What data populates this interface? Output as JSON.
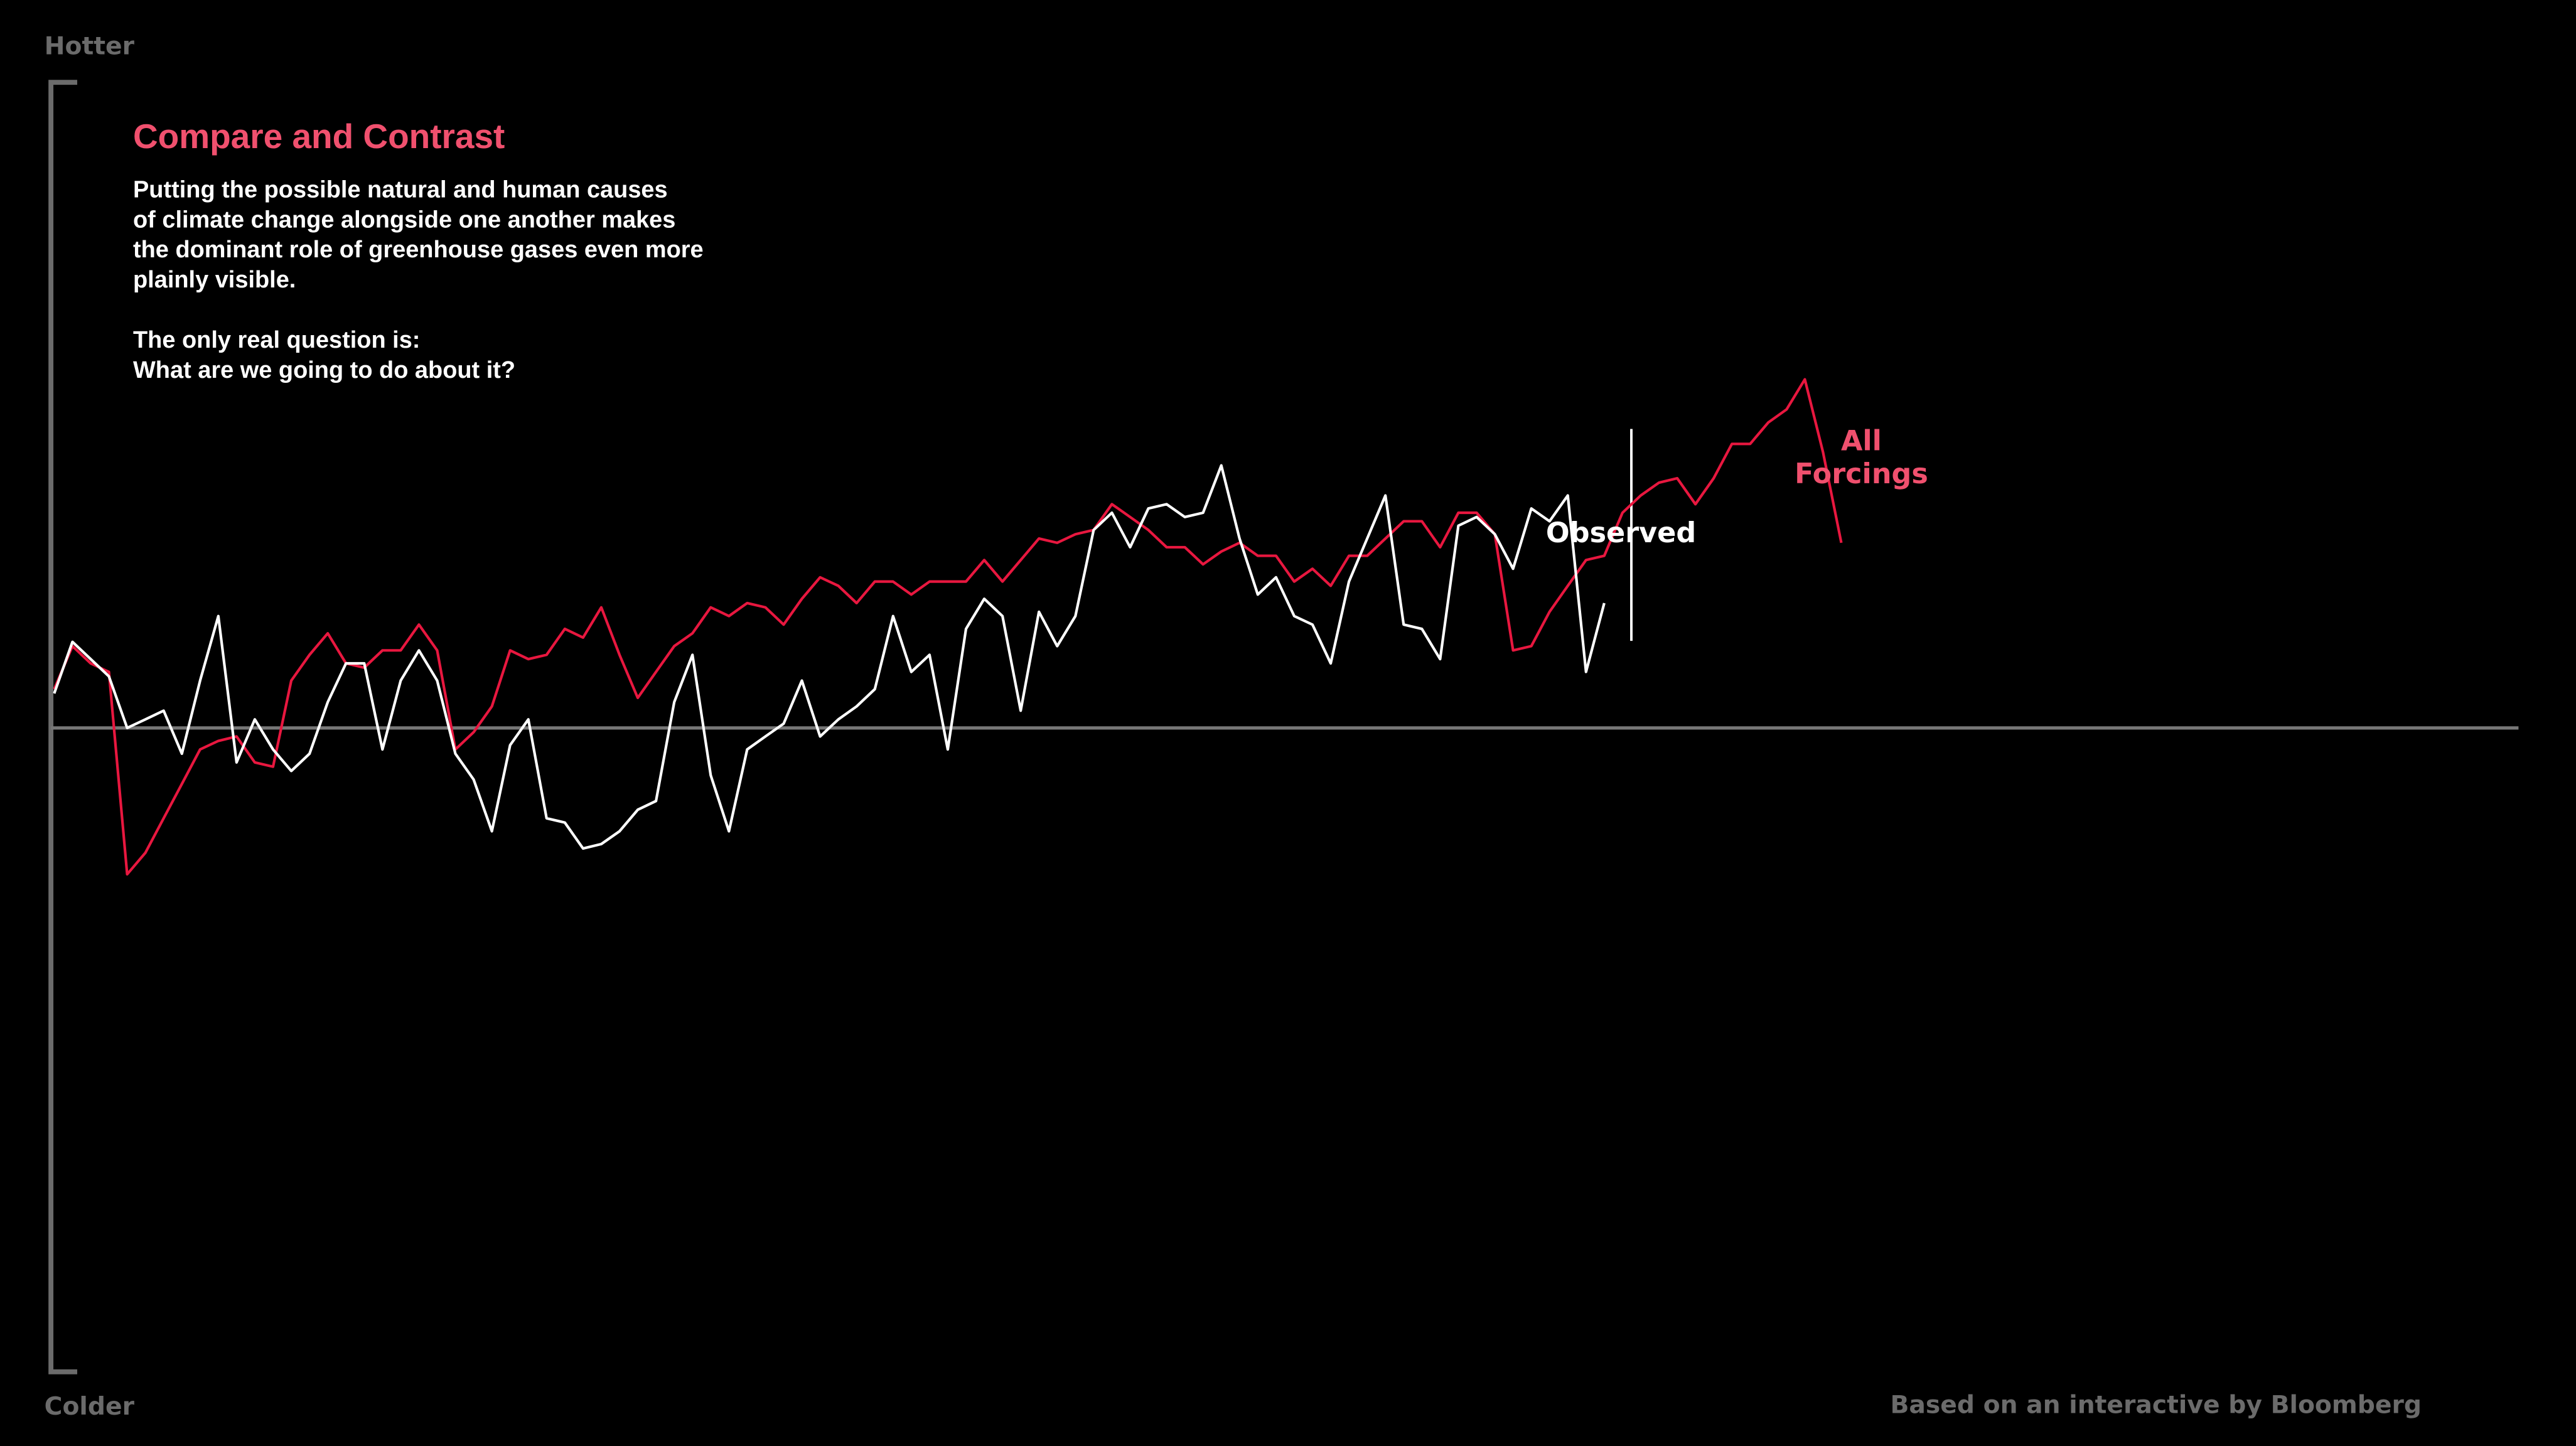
{
  "chart_data": {
    "type": "line",
    "title": "Compare and Contrast",
    "description": [
      [
        "Putting the possible natural and human causes",
        "of climate change alongside one another makes",
        "the dominant role of greenhouse gases even more",
        "plainly visible."
      ],
      [
        "The only real question is:",
        "What are we going to do about it?"
      ]
    ],
    "y_top_label": "Hotter",
    "y_bottom_label": "Colder",
    "credit": "Based on an interactive by Bloomberg",
    "ylim": [
      -1.5,
      1.5
    ],
    "series": [
      {
        "name": "Observed",
        "color": "#ffffff",
        "values": [
          0.08,
          0.2,
          0.16,
          0.12,
          0.0,
          0.02,
          0.04,
          -0.06,
          0.11,
          0.26,
          -0.08,
          0.02,
          -0.05,
          -0.1,
          -0.06,
          0.06,
          0.15,
          0.15,
          -0.05,
          0.11,
          0.18,
          0.11,
          -0.06,
          -0.12,
          -0.24,
          -0.04,
          0.02,
          -0.21,
          -0.22,
          -0.28,
          -0.27,
          -0.24,
          -0.19,
          -0.17,
          0.06,
          0.17,
          -0.11,
          -0.24,
          -0.05,
          -0.02,
          0.01,
          0.11,
          -0.02,
          0.02,
          0.05,
          0.09,
          0.26,
          0.13,
          0.17,
          -0.05,
          0.23,
          0.3,
          0.26,
          0.04,
          0.27,
          0.19,
          0.26,
          0.46,
          0.5,
          0.42,
          0.51,
          0.52,
          0.49,
          0.5,
          0.61,
          0.44,
          0.31,
          0.35,
          0.26,
          0.24,
          0.15,
          0.34,
          0.44,
          0.54,
          0.24,
          0.23,
          0.16,
          0.47,
          0.49,
          0.45,
          0.37,
          0.51,
          0.48,
          0.54,
          0.13,
          0.29
        ]
      },
      {
        "name": "All Forcings",
        "color": "#e8173f",
        "values": [
          0.09,
          0.19,
          0.15,
          0.13,
          -0.34,
          -0.29,
          -0.21,
          -0.13,
          -0.05,
          -0.03,
          -0.02,
          -0.08,
          -0.09,
          0.11,
          0.17,
          0.22,
          0.15,
          0.14,
          0.18,
          0.18,
          0.24,
          0.18,
          -0.05,
          -0.01,
          0.05,
          0.18,
          0.16,
          0.17,
          0.23,
          0.21,
          0.28,
          0.17,
          0.07,
          0.13,
          0.19,
          0.22,
          0.28,
          0.26,
          0.29,
          0.28,
          0.24,
          0.3,
          0.35,
          0.33,
          0.29,
          0.34,
          0.34,
          0.31,
          0.34,
          0.34,
          0.34,
          0.39,
          0.34,
          0.39,
          0.44,
          0.43,
          0.45,
          0.46,
          0.52,
          0.49,
          0.46,
          0.42,
          0.42,
          0.38,
          0.41,
          0.43,
          0.4,
          0.4,
          0.34,
          0.37,
          0.33,
          0.4,
          0.4,
          0.44,
          0.48,
          0.48,
          0.42,
          0.5,
          0.5,
          0.45,
          0.18,
          0.19,
          0.27,
          0.33,
          0.39,
          0.4,
          0.5,
          0.54,
          0.57,
          0.58,
          0.52,
          0.58,
          0.66,
          0.66,
          0.71,
          0.74,
          0.81,
          0.64,
          0.43
        ]
      }
    ]
  }
}
